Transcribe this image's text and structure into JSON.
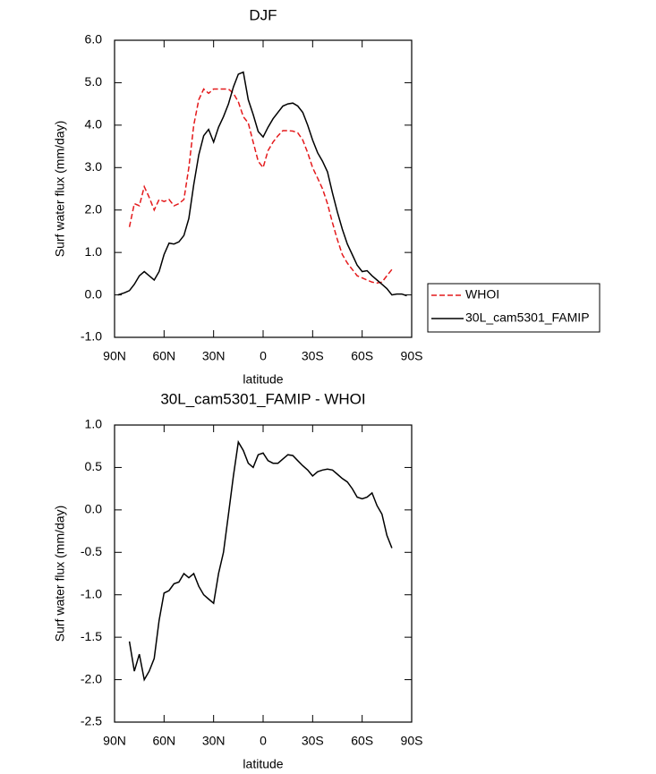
{
  "chart_data": [
    {
      "type": "line",
      "title": "DJF",
      "xlabel": "latitude",
      "ylabel": "Surf water flux (mm/day)",
      "x": [
        88,
        84,
        81,
        78,
        75,
        72,
        69,
        66,
        63,
        60,
        57,
        54,
        51,
        48,
        45,
        42,
        39,
        36,
        33,
        30,
        27,
        24,
        21,
        18,
        15,
        12,
        9,
        6,
        3,
        0,
        -3,
        -6,
        -9,
        -12,
        -15,
        -18,
        -21,
        -24,
        -27,
        -30,
        -33,
        -36,
        -39,
        -42,
        -45,
        -48,
        -51,
        -54,
        -57,
        -60,
        -63,
        -66,
        -69,
        -72,
        -75,
        -78,
        -81,
        -84,
        -87
      ],
      "series": [
        {
          "name": "WHOI",
          "color": "#e41a1c",
          "style": "dashed",
          "values": [
            null,
            null,
            1.6,
            2.15,
            2.1,
            2.55,
            2.3,
            2.0,
            2.25,
            2.2,
            2.25,
            2.1,
            2.15,
            2.25,
            3.0,
            4.0,
            4.6,
            4.85,
            4.75,
            4.85,
            4.85,
            4.85,
            4.85,
            4.75,
            4.55,
            4.2,
            4.05,
            3.6,
            3.15,
            3.0,
            3.4,
            3.6,
            3.75,
            3.87,
            3.87,
            3.86,
            3.82,
            3.65,
            3.35,
            3.0,
            2.75,
            2.5,
            2.15,
            1.7,
            1.3,
            0.95,
            0.75,
            0.6,
            0.45,
            0.4,
            0.35,
            0.3,
            0.28,
            0.3,
            0.45,
            0.6,
            null,
            null,
            null
          ]
        },
        {
          "name": "30L_cam5301_FAMIP",
          "color": "#000000",
          "style": "solid",
          "values": [
            0.0,
            0.05,
            0.1,
            0.25,
            0.45,
            0.55,
            0.45,
            0.35,
            0.55,
            0.95,
            1.22,
            1.2,
            1.25,
            1.4,
            1.8,
            2.6,
            3.3,
            3.75,
            3.9,
            3.6,
            3.95,
            4.2,
            4.5,
            4.9,
            5.2,
            5.25,
            4.6,
            4.25,
            3.85,
            3.72,
            3.95,
            4.15,
            4.3,
            4.45,
            4.5,
            4.52,
            4.45,
            4.3,
            4.0,
            3.65,
            3.35,
            3.15,
            2.9,
            2.4,
            1.95,
            1.55,
            1.2,
            0.95,
            0.7,
            0.55,
            0.57,
            0.45,
            0.35,
            0.25,
            0.15,
            0.0,
            0.02,
            0.02,
            -0.02
          ]
        }
      ],
      "xlim": [
        90,
        -90
      ],
      "xticks": [
        {
          "value": 90,
          "label": "90N"
        },
        {
          "value": 60,
          "label": "60N"
        },
        {
          "value": 30,
          "label": "30N"
        },
        0,
        {
          "value": -30,
          "label": "30S"
        },
        {
          "value": -60,
          "label": "60S"
        },
        {
          "value": -90,
          "label": "90S"
        }
      ],
      "ylim": [
        -1,
        6
      ],
      "yticks": [
        {
          "value": -1,
          "label": "-1.0"
        },
        {
          "value": 0,
          "label": "0.0"
        },
        {
          "value": 1,
          "label": "1.0"
        },
        {
          "value": 2,
          "label": "2.0"
        },
        {
          "value": 3,
          "label": "3.0"
        },
        {
          "value": 4,
          "label": "4.0"
        },
        {
          "value": 5,
          "label": "5.0"
        },
        {
          "value": 6,
          "label": "6.0"
        }
      ],
      "legend": "right"
    },
    {
      "type": "line",
      "title": "30L_cam5301_FAMIP - WHOI",
      "xlabel": "latitude",
      "ylabel": "Surf water flux (mm/day)",
      "x": [
        81,
        78,
        75,
        72,
        69,
        66,
        63,
        60,
        57,
        54,
        51,
        48,
        45,
        42,
        39,
        36,
        33,
        30,
        27,
        24,
        21,
        18,
        15,
        12,
        9,
        6,
        3,
        0,
        -3,
        -6,
        -9,
        -12,
        -15,
        -18,
        -21,
        -24,
        -27,
        -30,
        -33,
        -36,
        -39,
        -42,
        -45,
        -48,
        -51,
        -54,
        -57,
        -60,
        -63,
        -66,
        -69,
        -72,
        -75,
        -78
      ],
      "color": "#000000",
      "values": [
        -1.55,
        -1.9,
        -1.7,
        -2.0,
        -1.9,
        -1.75,
        -1.3,
        -0.98,
        -0.95,
        -0.87,
        -0.85,
        -0.75,
        -0.8,
        -0.75,
        -0.9,
        -1.0,
        -1.05,
        -1.1,
        -0.75,
        -0.5,
        -0.05,
        0.4,
        0.8,
        0.7,
        0.55,
        0.5,
        0.65,
        0.67,
        0.58,
        0.55,
        0.55,
        0.6,
        0.65,
        0.64,
        0.58,
        0.52,
        0.47,
        0.4,
        0.45,
        0.47,
        0.48,
        0.47,
        0.42,
        0.37,
        0.33,
        0.25,
        0.15,
        0.13,
        0.15,
        0.2,
        0.05,
        -0.05,
        -0.3,
        -0.45
      ],
      "xlim": [
        90,
        -90
      ],
      "xticks": [
        {
          "value": 90,
          "label": "90N"
        },
        {
          "value": 60,
          "label": "60N"
        },
        {
          "value": 30,
          "label": "30N"
        },
        0,
        {
          "value": -30,
          "label": "30S"
        },
        {
          "value": -60,
          "label": "60S"
        },
        {
          "value": -90,
          "label": "90S"
        }
      ],
      "ylim": [
        -2.5,
        1
      ],
      "yticks": [
        -2.5,
        {
          "value": -2,
          "label": "-2.0"
        },
        -1.5,
        {
          "value": -1,
          "label": "-1.0"
        },
        -0.5,
        {
          "value": 0,
          "label": "0.0"
        },
        0.5,
        {
          "value": 1,
          "label": "1.0"
        }
      ]
    }
  ]
}
